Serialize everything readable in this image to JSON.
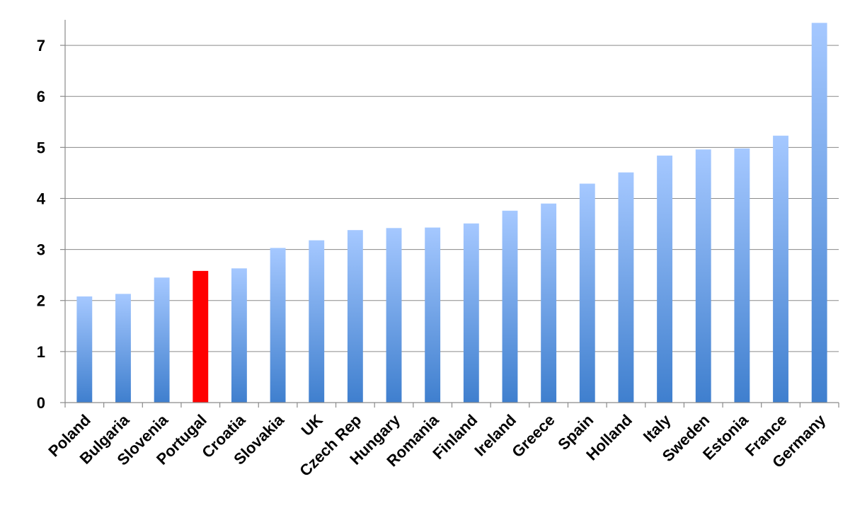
{
  "chart_data": {
    "type": "bar",
    "title": "",
    "xlabel": "",
    "ylabel": "",
    "categories": [
      "Poland",
      "Bulgaria",
      "Slovenia",
      "Portugal",
      "Croatia",
      "Slovakia",
      "UK",
      "Czech Rep",
      "Hungary",
      "Romania",
      "Finland",
      "Ireland",
      "Greece",
      "Spain",
      "Holland",
      "Italy",
      "Sweden",
      "Estonia",
      "France",
      "Germany"
    ],
    "values": [
      2.08,
      2.13,
      2.45,
      2.58,
      2.63,
      3.03,
      3.18,
      3.38,
      3.42,
      3.43,
      3.51,
      3.76,
      3.9,
      4.29,
      4.51,
      4.84,
      4.96,
      4.98,
      5.23,
      7.44
    ],
    "highlight_category": "Portugal",
    "ylim": [
      0,
      7.5
    ],
    "yticks": [
      0,
      1,
      2,
      3,
      4,
      5,
      6,
      7
    ],
    "grid": true,
    "legend": "none",
    "colors": {
      "bar_top": "#a5c8ff",
      "bar_bottom": "#3f7fce",
      "highlight": "#ff0000",
      "grid": "#8a8a8a",
      "text": "#000000"
    }
  }
}
